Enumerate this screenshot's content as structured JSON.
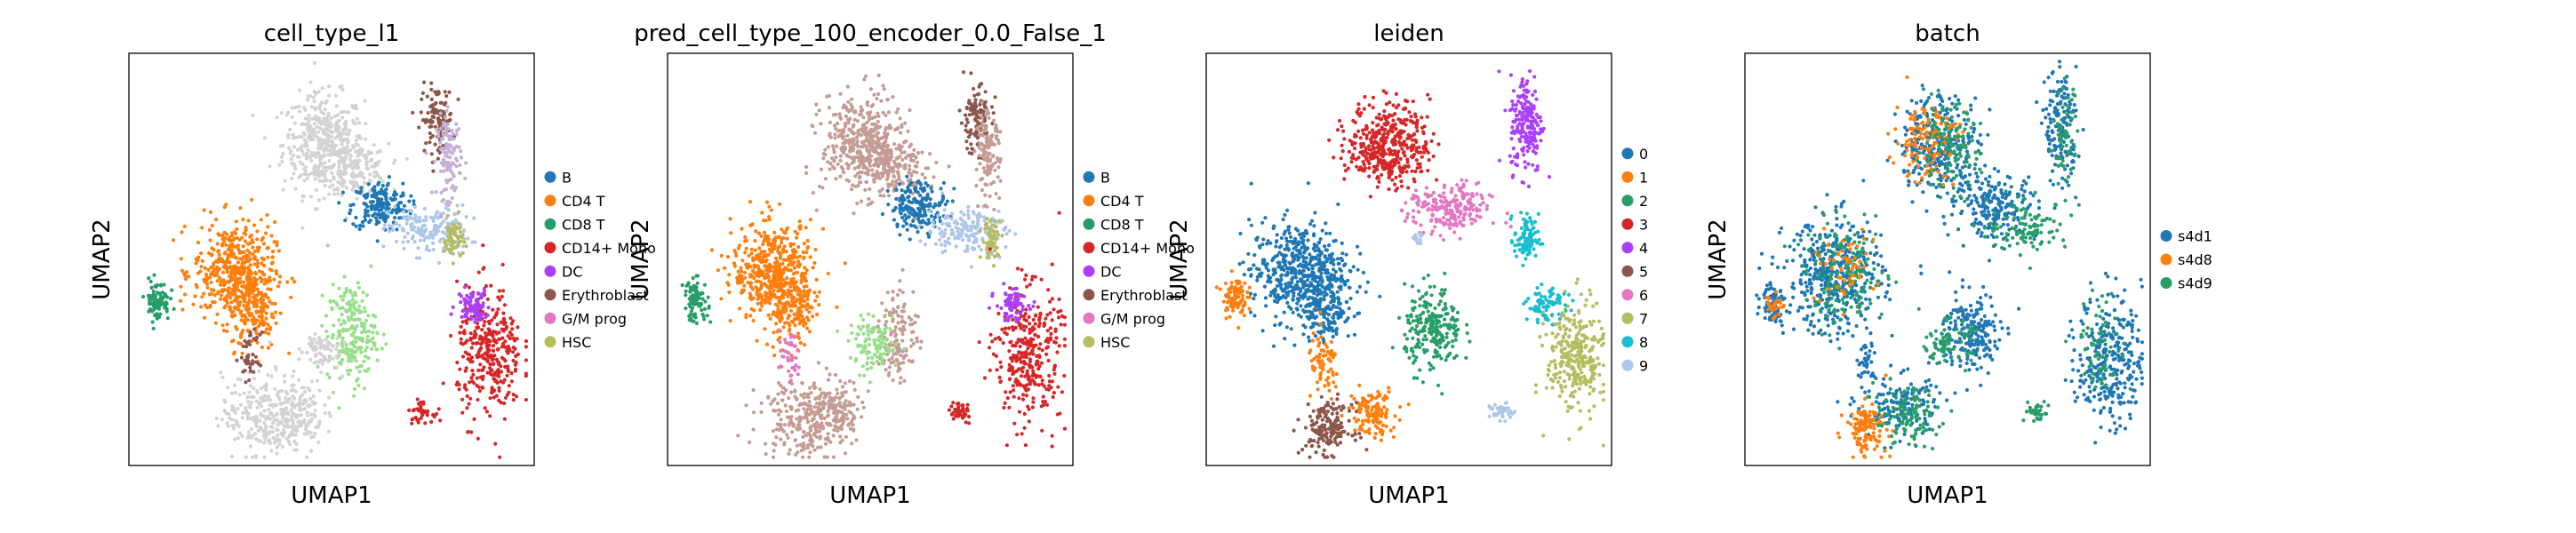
{
  "chart_data": [
    {
      "type": "scatter",
      "title": "cell_type_l1",
      "xlabel": "UMAP1",
      "ylabel": "UMAP2",
      "grid": false,
      "legend_placement": "right",
      "series": [
        {
          "name": "B",
          "color": "#1f77b4"
        },
        {
          "name": "CD4 T",
          "color": "#ff7f0e"
        },
        {
          "name": "CD8 T",
          "color": "#279e68"
        },
        {
          "name": "CD14+ Mono",
          "color": "#d62728"
        },
        {
          "name": "DC",
          "color": "#aa40fc"
        },
        {
          "name": "Erythroblast",
          "color": "#8c564b"
        },
        {
          "name": "G/M prog",
          "color": "#e377c2"
        },
        {
          "name": "HSC",
          "color": "#b5bd61"
        }
      ],
      "clusters": [
        {
          "color": "#d3d3d3",
          "x": 0.48,
          "y": 0.78,
          "sx": 0.05,
          "sy": 0.06,
          "n": 420
        },
        {
          "color": "#d3d3d3",
          "x": 0.56,
          "y": 0.72,
          "sx": 0.04,
          "sy": 0.03,
          "n": 160
        },
        {
          "color": "#1f77b4",
          "x": 0.62,
          "y": 0.63,
          "sx": 0.035,
          "sy": 0.03,
          "n": 190
        },
        {
          "color": "#aec7e8",
          "x": 0.74,
          "y": 0.57,
          "sx": 0.05,
          "sy": 0.03,
          "n": 170
        },
        {
          "color": "#8c564b",
          "x": 0.76,
          "y": 0.84,
          "sx": 0.02,
          "sy": 0.04,
          "n": 110
        },
        {
          "color": "#c5b0d5",
          "x": 0.79,
          "y": 0.75,
          "sx": 0.015,
          "sy": 0.05,
          "n": 120
        },
        {
          "color": "#b5bd61",
          "x": 0.8,
          "y": 0.55,
          "sx": 0.012,
          "sy": 0.025,
          "n": 60
        },
        {
          "color": "#ff7f0e",
          "x": 0.26,
          "y": 0.47,
          "sx": 0.05,
          "sy": 0.06,
          "n": 460
        },
        {
          "color": "#ff7f0e",
          "x": 0.31,
          "y": 0.38,
          "sx": 0.03,
          "sy": 0.05,
          "n": 160
        },
        {
          "color": "#279e68",
          "x": 0.07,
          "y": 0.4,
          "sx": 0.015,
          "sy": 0.025,
          "n": 90
        },
        {
          "color": "#98df8a",
          "x": 0.55,
          "y": 0.32,
          "sx": 0.03,
          "sy": 0.06,
          "n": 220
        },
        {
          "color": "#d3d3d3",
          "x": 0.47,
          "y": 0.28,
          "sx": 0.025,
          "sy": 0.025,
          "n": 70
        },
        {
          "color": "#d3d3d3",
          "x": 0.33,
          "y": 0.12,
          "sx": 0.05,
          "sy": 0.05,
          "n": 240
        },
        {
          "color": "#d3d3d3",
          "x": 0.42,
          "y": 0.13,
          "sx": 0.03,
          "sy": 0.04,
          "n": 130
        },
        {
          "color": "#d62728",
          "x": 0.89,
          "y": 0.27,
          "sx": 0.04,
          "sy": 0.08,
          "n": 330
        },
        {
          "color": "#aa40fc",
          "x": 0.85,
          "y": 0.39,
          "sx": 0.02,
          "sy": 0.02,
          "n": 80
        },
        {
          "color": "#d62728",
          "x": 0.72,
          "y": 0.13,
          "sx": 0.015,
          "sy": 0.012,
          "n": 40
        },
        {
          "color": "#8c564b",
          "x": 0.3,
          "y": 0.26,
          "sx": 0.012,
          "sy": 0.03,
          "n": 40
        }
      ]
    },
    {
      "type": "scatter",
      "title": "pred_cell_type_100_encoder_0.0_False_1",
      "xlabel": "UMAP1",
      "ylabel": "UMAP2",
      "grid": false,
      "legend_placement": "right",
      "series": [
        {
          "name": "B",
          "color": "#1f77b4"
        },
        {
          "name": "CD4 T",
          "color": "#ff7f0e"
        },
        {
          "name": "CD8 T",
          "color": "#279e68"
        },
        {
          "name": "CD14+ Mono",
          "color": "#d62728"
        },
        {
          "name": "DC",
          "color": "#aa40fc"
        },
        {
          "name": "Erythroblast",
          "color": "#8c564b"
        },
        {
          "name": "G/M prog",
          "color": "#e377c2"
        },
        {
          "name": "HSC",
          "color": "#b5bd61"
        }
      ],
      "clusters": [
        {
          "color": "#c49c94",
          "x": 0.48,
          "y": 0.78,
          "sx": 0.05,
          "sy": 0.06,
          "n": 420
        },
        {
          "color": "#c49c94",
          "x": 0.56,
          "y": 0.72,
          "sx": 0.04,
          "sy": 0.03,
          "n": 160
        },
        {
          "color": "#1f77b4",
          "x": 0.62,
          "y": 0.63,
          "sx": 0.035,
          "sy": 0.03,
          "n": 190
        },
        {
          "color": "#aec7e8",
          "x": 0.74,
          "y": 0.57,
          "sx": 0.05,
          "sy": 0.03,
          "n": 170
        },
        {
          "color": "#8c564b",
          "x": 0.76,
          "y": 0.84,
          "sx": 0.02,
          "sy": 0.04,
          "n": 110
        },
        {
          "color": "#c49c94",
          "x": 0.79,
          "y": 0.75,
          "sx": 0.015,
          "sy": 0.05,
          "n": 120
        },
        {
          "color": "#b5bd61",
          "x": 0.8,
          "y": 0.55,
          "sx": 0.012,
          "sy": 0.025,
          "n": 60
        },
        {
          "color": "#ff7f0e",
          "x": 0.26,
          "y": 0.47,
          "sx": 0.05,
          "sy": 0.06,
          "n": 460
        },
        {
          "color": "#ff7f0e",
          "x": 0.31,
          "y": 0.38,
          "sx": 0.03,
          "sy": 0.05,
          "n": 160
        },
        {
          "color": "#279e68",
          "x": 0.07,
          "y": 0.4,
          "sx": 0.015,
          "sy": 0.025,
          "n": 90
        },
        {
          "color": "#c49c94",
          "x": 0.57,
          "y": 0.32,
          "sx": 0.025,
          "sy": 0.06,
          "n": 130
        },
        {
          "color": "#98df8a",
          "x": 0.51,
          "y": 0.29,
          "sx": 0.03,
          "sy": 0.03,
          "n": 110
        },
        {
          "color": "#c49c94",
          "x": 0.33,
          "y": 0.12,
          "sx": 0.05,
          "sy": 0.05,
          "n": 240
        },
        {
          "color": "#c49c94",
          "x": 0.42,
          "y": 0.13,
          "sx": 0.03,
          "sy": 0.04,
          "n": 130
        },
        {
          "color": "#d62728",
          "x": 0.89,
          "y": 0.27,
          "sx": 0.04,
          "sy": 0.08,
          "n": 330
        },
        {
          "color": "#aa40fc",
          "x": 0.85,
          "y": 0.39,
          "sx": 0.02,
          "sy": 0.02,
          "n": 80
        },
        {
          "color": "#d62728",
          "x": 0.72,
          "y": 0.13,
          "sx": 0.015,
          "sy": 0.012,
          "n": 40
        },
        {
          "color": "#e377c2",
          "x": 0.3,
          "y": 0.26,
          "sx": 0.012,
          "sy": 0.03,
          "n": 40
        }
      ]
    },
    {
      "type": "scatter",
      "title": "leiden",
      "xlabel": "UMAP1",
      "ylabel": "UMAP2",
      "grid": false,
      "legend_placement": "right",
      "series": [
        {
          "name": "0",
          "color": "#1f77b4"
        },
        {
          "name": "1",
          "color": "#ff7f0e"
        },
        {
          "name": "2",
          "color": "#279e68"
        },
        {
          "name": "3",
          "color": "#d62728"
        },
        {
          "name": "4",
          "color": "#aa40fc"
        },
        {
          "name": "5",
          "color": "#8c564b"
        },
        {
          "name": "6",
          "color": "#e377c2"
        },
        {
          "name": "7",
          "color": "#b5bd61"
        },
        {
          "name": "8",
          "color": "#17becf"
        },
        {
          "name": "9",
          "color": "#aec7e8"
        }
      ],
      "clusters": [
        {
          "color": "#d62728",
          "x": 0.45,
          "y": 0.78,
          "sx": 0.05,
          "sy": 0.05,
          "n": 420
        },
        {
          "color": "#e377c2",
          "x": 0.6,
          "y": 0.62,
          "sx": 0.05,
          "sy": 0.03,
          "n": 220
        },
        {
          "color": "#17becf",
          "x": 0.79,
          "y": 0.55,
          "sx": 0.015,
          "sy": 0.03,
          "n": 90
        },
        {
          "color": "#aa40fc",
          "x": 0.79,
          "y": 0.83,
          "sx": 0.02,
          "sy": 0.06,
          "n": 200
        },
        {
          "color": "#1f77b4",
          "x": 0.23,
          "y": 0.47,
          "sx": 0.06,
          "sy": 0.06,
          "n": 540
        },
        {
          "color": "#1f77b4",
          "x": 0.3,
          "y": 0.38,
          "sx": 0.03,
          "sy": 0.04,
          "n": 140
        },
        {
          "color": "#ff7f0e",
          "x": 0.07,
          "y": 0.41,
          "sx": 0.015,
          "sy": 0.025,
          "n": 90
        },
        {
          "color": "#279e68",
          "x": 0.56,
          "y": 0.33,
          "sx": 0.035,
          "sy": 0.05,
          "n": 240
        },
        {
          "color": "#ff7f0e",
          "x": 0.29,
          "y": 0.24,
          "sx": 0.02,
          "sy": 0.04,
          "n": 70
        },
        {
          "color": "#ff7f0e",
          "x": 0.41,
          "y": 0.13,
          "sx": 0.03,
          "sy": 0.03,
          "n": 120
        },
        {
          "color": "#8c564b",
          "x": 0.3,
          "y": 0.09,
          "sx": 0.03,
          "sy": 0.03,
          "n": 170
        },
        {
          "color": "#b5bd61",
          "x": 0.91,
          "y": 0.26,
          "sx": 0.035,
          "sy": 0.07,
          "n": 300
        },
        {
          "color": "#17becf",
          "x": 0.84,
          "y": 0.39,
          "sx": 0.025,
          "sy": 0.02,
          "n": 80
        },
        {
          "color": "#aec7e8",
          "x": 0.73,
          "y": 0.13,
          "sx": 0.015,
          "sy": 0.01,
          "n": 40
        },
        {
          "color": "#aec7e8",
          "x": 0.52,
          "y": 0.55,
          "sx": 0.008,
          "sy": 0.006,
          "n": 15
        }
      ]
    },
    {
      "type": "scatter",
      "title": "batch",
      "xlabel": "UMAP1",
      "ylabel": "UMAP2",
      "grid": false,
      "legend_placement": "right",
      "series": [
        {
          "name": "s4d1",
          "color": "#1f77b4"
        },
        {
          "name": "s4d8",
          "color": "#ff7f0e"
        },
        {
          "name": "s4d9",
          "color": "#279e68"
        }
      ],
      "clusters": [
        {
          "color": "#1f77b4",
          "x": 0.48,
          "y": 0.78,
          "sx": 0.05,
          "sy": 0.06,
          "n": 300
        },
        {
          "color": "#ff7f0e",
          "x": 0.45,
          "y": 0.79,
          "sx": 0.04,
          "sy": 0.05,
          "n": 140
        },
        {
          "color": "#279e68",
          "x": 0.5,
          "y": 0.77,
          "sx": 0.04,
          "sy": 0.05,
          "n": 120
        },
        {
          "color": "#1f77b4",
          "x": 0.62,
          "y": 0.63,
          "sx": 0.05,
          "sy": 0.04,
          "n": 200
        },
        {
          "color": "#279e68",
          "x": 0.7,
          "y": 0.58,
          "sx": 0.05,
          "sy": 0.03,
          "n": 110
        },
        {
          "color": "#1f77b4",
          "x": 0.78,
          "y": 0.82,
          "sx": 0.02,
          "sy": 0.07,
          "n": 160
        },
        {
          "color": "#279e68",
          "x": 0.79,
          "y": 0.79,
          "sx": 0.015,
          "sy": 0.06,
          "n": 60
        },
        {
          "color": "#1f77b4",
          "x": 0.22,
          "y": 0.46,
          "sx": 0.06,
          "sy": 0.07,
          "n": 420
        },
        {
          "color": "#279e68",
          "x": 0.25,
          "y": 0.46,
          "sx": 0.05,
          "sy": 0.06,
          "n": 160
        },
        {
          "color": "#ff7f0e",
          "x": 0.24,
          "y": 0.48,
          "sx": 0.04,
          "sy": 0.04,
          "n": 60
        },
        {
          "color": "#1f77b4",
          "x": 0.07,
          "y": 0.4,
          "sx": 0.015,
          "sy": 0.025,
          "n": 70
        },
        {
          "color": "#ff7f0e",
          "x": 0.07,
          "y": 0.39,
          "sx": 0.01,
          "sy": 0.02,
          "n": 25
        },
        {
          "color": "#1f77b4",
          "x": 0.56,
          "y": 0.32,
          "sx": 0.035,
          "sy": 0.05,
          "n": 200
        },
        {
          "color": "#279e68",
          "x": 0.5,
          "y": 0.3,
          "sx": 0.03,
          "sy": 0.025,
          "n": 80
        },
        {
          "color": "#1f77b4",
          "x": 0.38,
          "y": 0.14,
          "sx": 0.05,
          "sy": 0.04,
          "n": 160
        },
        {
          "color": "#ff7f0e",
          "x": 0.3,
          "y": 0.09,
          "sx": 0.025,
          "sy": 0.03,
          "n": 120
        },
        {
          "color": "#279e68",
          "x": 0.4,
          "y": 0.12,
          "sx": 0.04,
          "sy": 0.035,
          "n": 110
        },
        {
          "color": "#1f77b4",
          "x": 0.9,
          "y": 0.26,
          "sx": 0.04,
          "sy": 0.08,
          "n": 300
        },
        {
          "color": "#279e68",
          "x": 0.88,
          "y": 0.29,
          "sx": 0.03,
          "sy": 0.06,
          "n": 70
        },
        {
          "color": "#279e68",
          "x": 0.72,
          "y": 0.13,
          "sx": 0.015,
          "sy": 0.012,
          "n": 35
        },
        {
          "color": "#1f77b4",
          "x": 0.3,
          "y": 0.25,
          "sx": 0.012,
          "sy": 0.03,
          "n": 40
        }
      ]
    }
  ]
}
